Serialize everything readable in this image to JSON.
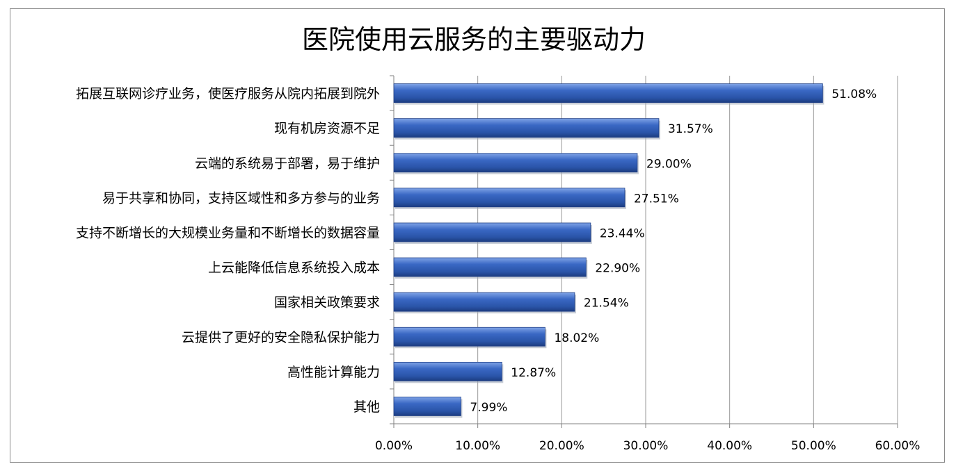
{
  "chart_data": {
    "type": "bar",
    "orientation": "horizontal",
    "title": "医院使用云服务的主要驱动力",
    "xlabel": "",
    "ylabel": "",
    "xlim": [
      0,
      60
    ],
    "x_ticks": [
      "0.00%",
      "10.00%",
      "20.00%",
      "30.00%",
      "40.00%",
      "50.00%",
      "60.00%"
    ],
    "grid": "vertical",
    "legend": "none",
    "bar_color": "#2e5cb8",
    "categories": [
      "拓展互联网诊疗业务，使医疗服务从院内拓展到院外",
      "现有机房资源不足",
      "云端的系统易于部署，易于维护",
      "易于共享和协同，支持区域性和多方参与的业务",
      "支持不断增长的大规模业务量和不断增长的数据容量",
      "上云能降低信息系统投入成本",
      "国家相关政策要求",
      "云提供了更好的安全隐私保护能力",
      "高性能计算能力",
      "其他"
    ],
    "values": [
      51.08,
      31.57,
      29.0,
      27.51,
      23.44,
      22.9,
      21.54,
      18.02,
      12.87,
      7.99
    ],
    "value_labels": [
      "51.08%",
      "31.57%",
      "29.00%",
      "27.51%",
      "23.44%",
      "22.90%",
      "21.54%",
      "18.02%",
      "12.87%",
      "7.99%"
    ]
  }
}
